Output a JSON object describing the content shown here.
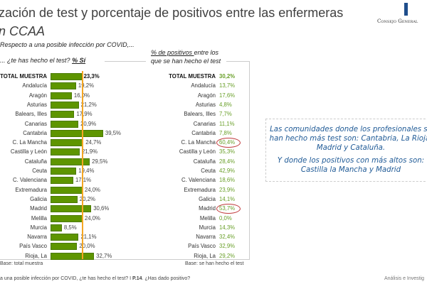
{
  "title": {
    "line1": "zación de test y porcentaje de positivos entre las enfermeras",
    "line2": "n CCAA"
  },
  "logo_text": "Consejo General",
  "left_question": {
    "line1": "Respecto a una posible infección por COVID,...",
    "line2_prefix": "... ¿te has hecho el test? ",
    "line2_emph": "% Sí"
  },
  "right_question": {
    "emph": "% de positivos ",
    "line1_rest": "entre los",
    "line2": "que se han hecho el test"
  },
  "chart_data": {
    "type": "bar",
    "orientation": "horizontal",
    "categories": [
      "TOTAL MUESTRA",
      "Andalucía",
      "Aragón",
      "Asturias",
      "Balears, Illes",
      "Canarias",
      "Cantabria",
      "C. La Mancha",
      "Castilla y León",
      "Cataluña",
      "Ceuta",
      "C. Valenciana",
      "Extremadura",
      "Galicia",
      "Madrid",
      "Melilla",
      "Murcia",
      "Navarra",
      "País Vasco",
      "Rioja, La"
    ],
    "values": [
      23.3,
      19.2,
      16.0,
      21.2,
      17.9,
      20.9,
      39.5,
      24.7,
      21.9,
      29.5,
      19.4,
      17.1,
      24.0,
      20.2,
      30.6,
      24.0,
      8.5,
      21.1,
      20.0,
      32.7
    ],
    "value_labels": [
      "23,3%",
      "19,2%",
      "16,0%",
      "21,2%",
      "17,9%",
      "20,9%",
      "39,5%",
      "24,7%",
      "21,9%",
      "29,5%",
      "19,4%",
      "17,1%",
      "24,0%",
      "20,2%",
      "30,6%",
      "24,0%",
      "8,5%",
      "21,1%",
      "20,0%",
      "32,7%"
    ],
    "reference_line": {
      "value": 23.3
    },
    "bar_color": "#5e9500",
    "reference_color": "#f5a623"
  },
  "positives": {
    "values": [
      "30,2%",
      "13,7%",
      "17,6%",
      "4,8%",
      "7,7%",
      "11,1%",
      "7,8%",
      "60,4%",
      "35,3%",
      "28,4%",
      "42,9%",
      "18,6%",
      "23,9%",
      "14,1%",
      "53,7%",
      "0,0%",
      "14,3%",
      "32,4%",
      "32,9%",
      "29,2%"
    ],
    "highlighted": [
      "C. La Mancha",
      "Madrid"
    ],
    "color": "#6aa02a"
  },
  "callout": {
    "p1": "Las comunidades donde los profesionales se han hecho más test son: Cantabria, La Rioja, Madrid y Cataluña.",
    "p2": "Y donde los positivos con más altos son: Castilla la Mancha y Madrid"
  },
  "base_left": "Base: total muestra",
  "base_right": "Base: se han hecho el test",
  "footer": {
    "text": "a una posible infección por COVID, ¿te has hecho el test? I ",
    "page": "P.14",
    "rest": ". ¿Has dado positivo?"
  },
  "footer_right": "Análisis e Investig"
}
